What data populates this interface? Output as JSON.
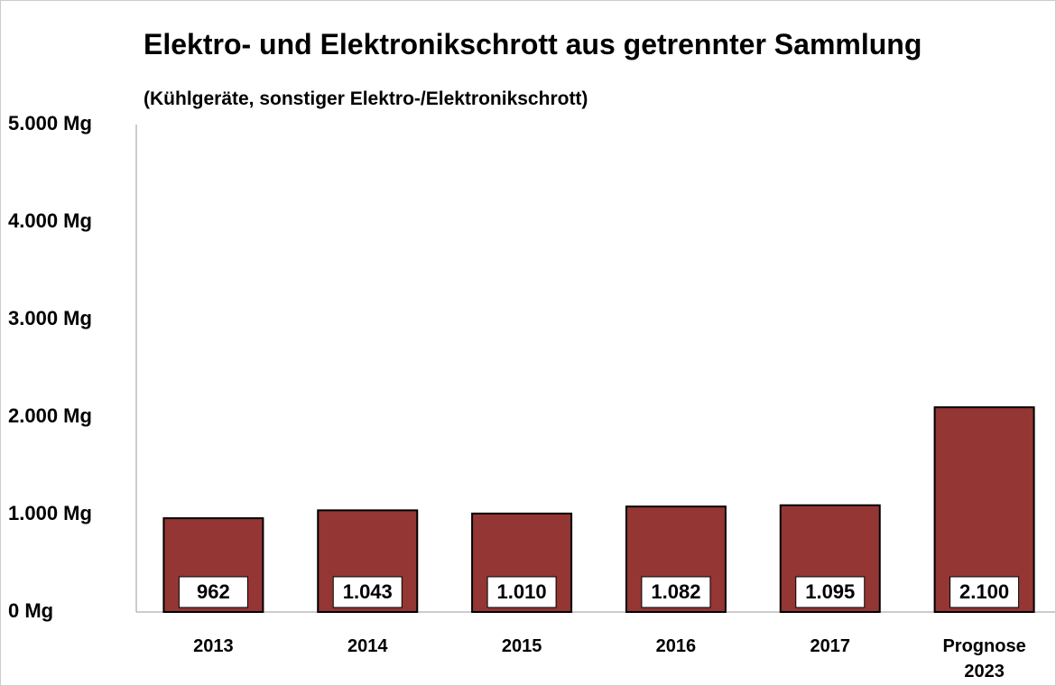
{
  "chart_data": {
    "type": "bar",
    "title": "Elektro- und Elektronikschrott aus getrennter Sammlung",
    "subtitle": "(Kühlgeräte, sonstiger Elektro-/Elektronikschrott)",
    "categories": [
      "2013",
      "2014",
      "2015",
      "2016",
      "2017",
      "Prognose 2023"
    ],
    "values": [
      962,
      1043,
      1010,
      1082,
      1095,
      2100
    ],
    "value_labels": [
      "962",
      "1.043",
      "1.010",
      "1.082",
      "1.095",
      "2.100"
    ],
    "color": "#943634",
    "ylim": [
      0,
      5000
    ],
    "yticks": [
      {
        "value": 0,
        "label": "0 Mg"
      },
      {
        "value": 1000,
        "label": "1.000 Mg"
      },
      {
        "value": 2000,
        "label": "2.000 Mg"
      },
      {
        "value": 3000,
        "label": "3.000 Mg"
      },
      {
        "value": 4000,
        "label": "4.000 Mg"
      },
      {
        "value": 5000,
        "label": "5.000 Mg"
      }
    ],
    "grid": false
  }
}
